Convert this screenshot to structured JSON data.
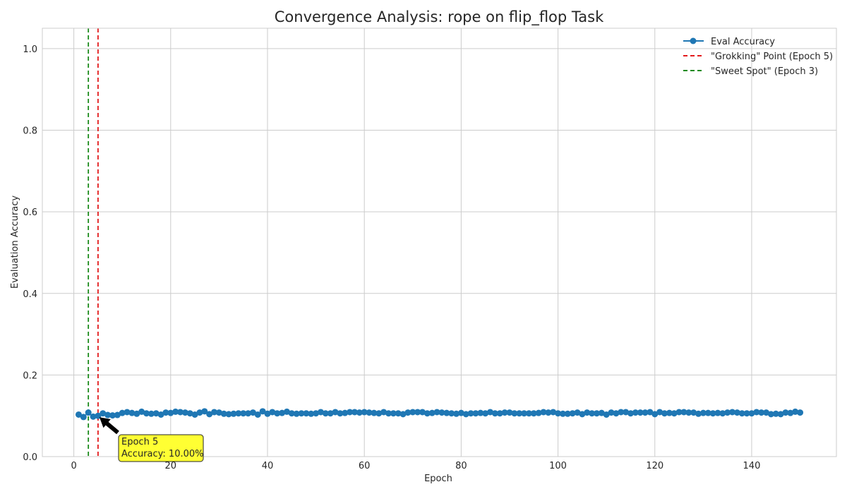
{
  "chart_data": {
    "type": "line",
    "title": "Convergence Analysis: rope on flip_flop Task",
    "xlabel": "Epoch",
    "ylabel": "Evaluation Accuracy",
    "xlim": [
      -6.5,
      157.5
    ],
    "ylim": [
      0.0,
      1.05
    ],
    "x_ticks": [
      0,
      20,
      40,
      60,
      80,
      100,
      120,
      140
    ],
    "y_ticks": [
      0.0,
      0.2,
      0.4,
      0.6,
      0.8,
      1.0
    ],
    "grid": true,
    "legend_position": "top-right",
    "series": [
      {
        "name": "Eval Accuracy",
        "color": "#1f77b4",
        "marker": "circle",
        "x": [
          1,
          2,
          3,
          4,
          5,
          6,
          7,
          8,
          9,
          10,
          11,
          12,
          13,
          14,
          15,
          16,
          17,
          18,
          19,
          20,
          21,
          22,
          23,
          24,
          25,
          26,
          27,
          28,
          29,
          30,
          31,
          32,
          33,
          34,
          35,
          36,
          37,
          38,
          39,
          40,
          41,
          42,
          43,
          44,
          45,
          46,
          47,
          48,
          49,
          50,
          51,
          52,
          53,
          54,
          55,
          56,
          57,
          58,
          59,
          60,
          61,
          62,
          63,
          64,
          65,
          66,
          67,
          68,
          69,
          70,
          71,
          72,
          73,
          74,
          75,
          76,
          77,
          78,
          79,
          80,
          81,
          82,
          83,
          84,
          85,
          86,
          87,
          88,
          89,
          90,
          91,
          92,
          93,
          94,
          95,
          96,
          97,
          98,
          99,
          100,
          101,
          102,
          103,
          104,
          105,
          106,
          107,
          108,
          109,
          110,
          111,
          112,
          113,
          114,
          115,
          116,
          117,
          118,
          119,
          120,
          121,
          122,
          123,
          124,
          125,
          126,
          127,
          128,
          129,
          130,
          131,
          132,
          133,
          134,
          135,
          136,
          137,
          138,
          139,
          140,
          141,
          142,
          143,
          144,
          145,
          146,
          147,
          148,
          149,
          150
        ],
        "y": [
          0.103,
          0.097,
          0.108,
          0.098,
          0.1,
          0.106,
          0.102,
          0.101,
          0.102,
          0.107,
          0.109,
          0.107,
          0.105,
          0.11,
          0.106,
          0.105,
          0.106,
          0.103,
          0.108,
          0.107,
          0.11,
          0.109,
          0.108,
          0.106,
          0.103,
          0.108,
          0.111,
          0.104,
          0.109,
          0.108,
          0.105,
          0.104,
          0.105,
          0.106,
          0.106,
          0.106,
          0.108,
          0.103,
          0.111,
          0.105,
          0.109,
          0.106,
          0.107,
          0.11,
          0.106,
          0.105,
          0.106,
          0.106,
          0.105,
          0.106,
          0.109,
          0.106,
          0.106,
          0.109,
          0.106,
          0.107,
          0.109,
          0.109,
          0.108,
          0.109,
          0.108,
          0.107,
          0.106,
          0.109,
          0.106,
          0.106,
          0.106,
          0.104,
          0.108,
          0.109,
          0.109,
          0.109,
          0.106,
          0.107,
          0.109,
          0.108,
          0.107,
          0.106,
          0.105,
          0.107,
          0.104,
          0.106,
          0.106,
          0.107,
          0.106,
          0.109,
          0.106,
          0.106,
          0.108,
          0.108,
          0.106,
          0.106,
          0.106,
          0.106,
          0.106,
          0.107,
          0.109,
          0.108,
          0.109,
          0.106,
          0.105,
          0.105,
          0.106,
          0.108,
          0.104,
          0.108,
          0.106,
          0.106,
          0.107,
          0.103,
          0.108,
          0.106,
          0.109,
          0.109,
          0.106,
          0.108,
          0.108,
          0.108,
          0.109,
          0.104,
          0.109,
          0.106,
          0.107,
          0.106,
          0.109,
          0.109,
          0.108,
          0.108,
          0.105,
          0.107,
          0.107,
          0.106,
          0.107,
          0.106,
          0.108,
          0.109,
          0.108,
          0.106,
          0.106,
          0.106,
          0.109,
          0.108,
          0.108,
          0.104,
          0.105,
          0.104,
          0.108,
          0.107,
          0.11,
          0.108
        ]
      }
    ],
    "vlines": [
      {
        "x": 5,
        "color": "#e31a1c",
        "style": "dashed",
        "label": "\"Grokking\" Point (Epoch 5)"
      },
      {
        "x": 3,
        "color": "#1a8a1a",
        "style": "dashed",
        "label": "\"Sweet Spot\" (Epoch 3)"
      }
    ],
    "annotation": {
      "line1": "Epoch 5",
      "line2": "Accuracy: 10.00%",
      "point_x": 5,
      "point_y": 0.1,
      "background": "#ffff33"
    }
  }
}
